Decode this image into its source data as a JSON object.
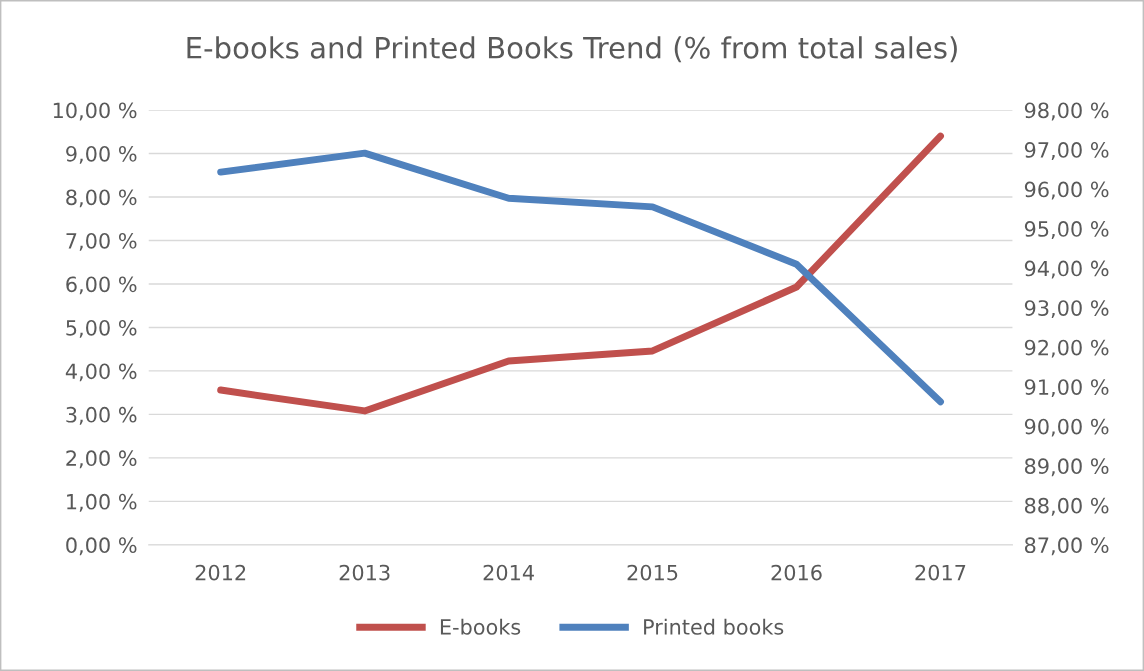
{
  "chart_data": {
    "type": "line",
    "title": "E-books and Printed Books Trend (% from total sales)",
    "categories": [
      "2012",
      "2013",
      "2014",
      "2015",
      "2016",
      "2017"
    ],
    "series": [
      {
        "name": "E-books",
        "color": "#c0504d",
        "values": [
          3.56,
          3.08,
          4.23,
          4.46,
          5.93,
          9.4
        ]
      },
      {
        "name": "Printed books",
        "color": "#4f81bd",
        "axis": "y2",
        "values": [
          96.43,
          96.91,
          95.77,
          95.55,
          94.1,
          90.62
        ]
      }
    ],
    "ylim": [
      0,
      10
    ],
    "yticks": [
      {
        "value": 0,
        "label": "0,00 %"
      },
      {
        "value": 1,
        "label": "1,00 %"
      },
      {
        "value": 2,
        "label": "2,00 %"
      },
      {
        "value": 3,
        "label": "3,00 %"
      },
      {
        "value": 4,
        "label": "4,00 %"
      },
      {
        "value": 5,
        "label": "5,00 %"
      },
      {
        "value": 6,
        "label": "6,00 %"
      },
      {
        "value": 7,
        "label": "7,00 %"
      },
      {
        "value": 8,
        "label": "8,00 %"
      },
      {
        "value": 9,
        "label": "9,00 %"
      },
      {
        "value": 10,
        "label": "10,00 %"
      }
    ],
    "y2lim": [
      87,
      98
    ],
    "y2ticks": [
      {
        "value": 87,
        "label": "87,00 %"
      },
      {
        "value": 88,
        "label": "88,00 %"
      },
      {
        "value": 89,
        "label": "89,00 %"
      },
      {
        "value": 90,
        "label": "90,00 %"
      },
      {
        "value": 91,
        "label": "91,00 %"
      },
      {
        "value": 92,
        "label": "92,00 %"
      },
      {
        "value": 93,
        "label": "93,00 %"
      },
      {
        "value": 94,
        "label": "94,00 %"
      },
      {
        "value": 95,
        "label": "95,00 %"
      },
      {
        "value": 96,
        "label": "96,00 %"
      },
      {
        "value": 97,
        "label": "97,00 %"
      },
      {
        "value": 98,
        "label": "98,00 %"
      }
    ],
    "grid": "y",
    "legend": "bottom",
    "marker": "none",
    "line_style": "solid"
  }
}
